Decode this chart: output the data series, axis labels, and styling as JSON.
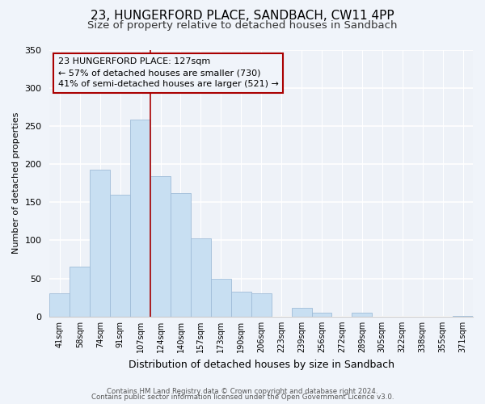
{
  "title": "23, HUNGERFORD PLACE, SANDBACH, CW11 4PP",
  "subtitle": "Size of property relative to detached houses in Sandbach",
  "xlabel": "Distribution of detached houses by size in Sandbach",
  "ylabel": "Number of detached properties",
  "bar_labels": [
    "41sqm",
    "58sqm",
    "74sqm",
    "91sqm",
    "107sqm",
    "124sqm",
    "140sqm",
    "157sqm",
    "173sqm",
    "190sqm",
    "206sqm",
    "223sqm",
    "239sqm",
    "256sqm",
    "272sqm",
    "289sqm",
    "305sqm",
    "322sqm",
    "338sqm",
    "355sqm",
    "371sqm"
  ],
  "bar_heights": [
    30,
    65,
    193,
    160,
    258,
    184,
    162,
    103,
    50,
    33,
    30,
    0,
    11,
    5,
    0,
    5,
    0,
    0,
    0,
    0,
    1
  ],
  "bar_color": "#c8dff2",
  "bar_edge_color": "#a0bcd8",
  "vline_x_index": 5,
  "vline_color": "#aa0000",
  "annotation_title": "23 HUNGERFORD PLACE: 127sqm",
  "annotation_line1": "← 57% of detached houses are smaller (730)",
  "annotation_line2": "41% of semi-detached houses are larger (521) →",
  "ylim": [
    0,
    350
  ],
  "yticks": [
    0,
    50,
    100,
    150,
    200,
    250,
    300,
    350
  ],
  "footer1": "Contains HM Land Registry data © Crown copyright and database right 2024.",
  "footer2": "Contains public sector information licensed under the Open Government Licence v3.0.",
  "background_color": "#f0f4fa",
  "plot_bg_color": "#eef2f8",
  "grid_color": "#ffffff",
  "title_fontsize": 11,
  "subtitle_fontsize": 9.5
}
